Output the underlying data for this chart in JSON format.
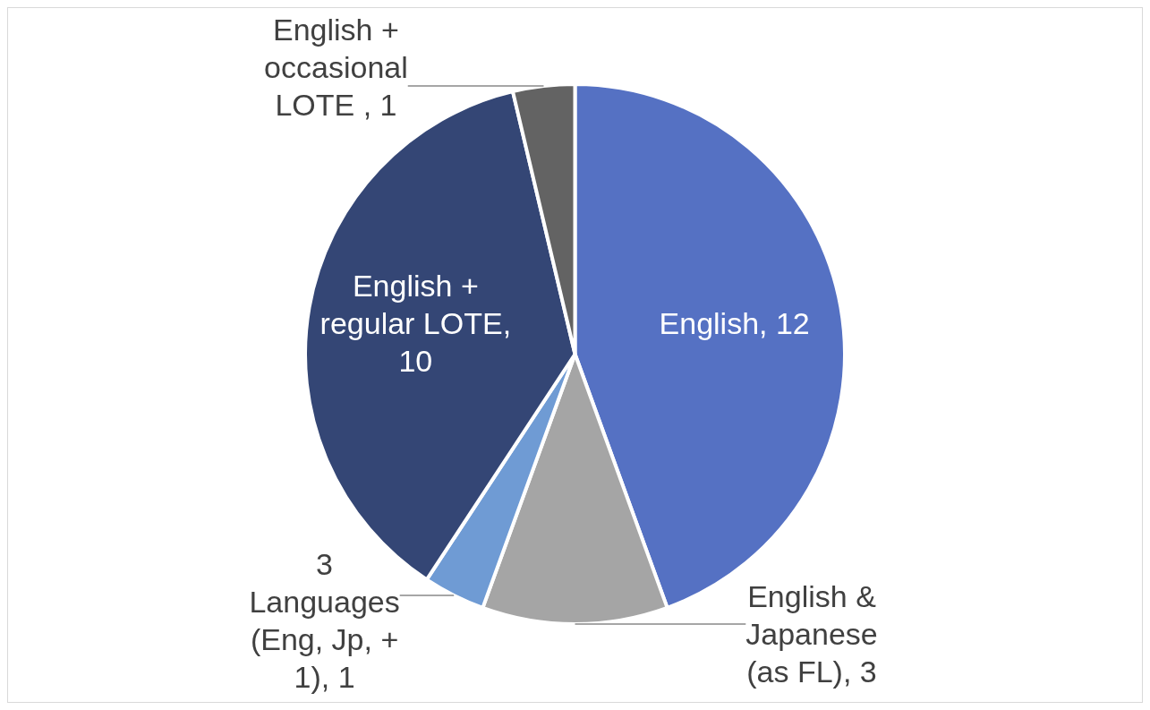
{
  "chart_data": {
    "type": "pie",
    "categories": [
      "English",
      "English & Japanese (as FL)",
      "3 Languages (Eng, Jp, + 1)",
      "English + regular LOTE",
      "English + occasional LOTE "
    ],
    "values": [
      12,
      3,
      1,
      10,
      1
    ],
    "colors": [
      "#5571c3",
      "#a5a5a5",
      "#6f9bd4",
      "#344675",
      "#636363"
    ],
    "value_labels": [
      ", 12",
      ", 3",
      ", 1",
      ", 10",
      ", 1"
    ],
    "legend": false
  }
}
